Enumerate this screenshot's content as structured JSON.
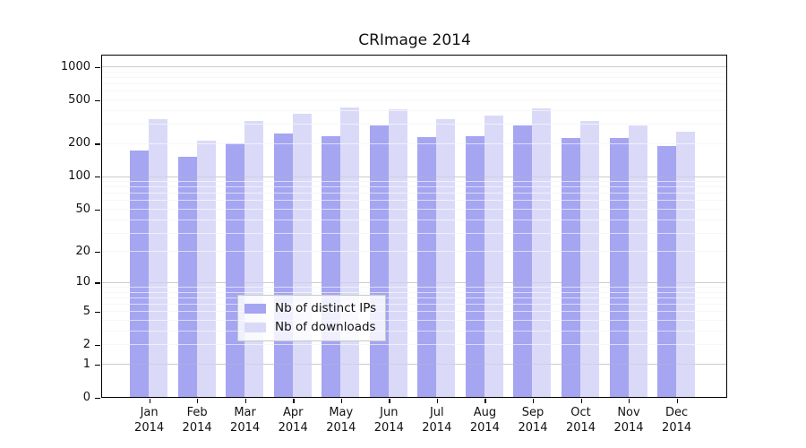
{
  "title": "CRImage 2014",
  "chart_data": {
    "type": "bar",
    "title": "CRImage 2014",
    "scale": "log1p",
    "categories": [
      "Jan",
      "Feb",
      "Mar",
      "Apr",
      "May",
      "Jun",
      "Jul",
      "Aug",
      "Sep",
      "Oct",
      "Nov",
      "Dec"
    ],
    "year_label": "2014",
    "series": [
      {
        "name": "Nb of distinct IPs",
        "color": "#a5a5f2",
        "values": [
          170,
          150,
          200,
          245,
          233,
          290,
          226,
          231,
          290,
          224,
          224,
          190
        ]
      },
      {
        "name": "Nb of downloads",
        "color": "#dadaf8",
        "values": [
          330,
          210,
          320,
          372,
          425,
          404,
          330,
          356,
          418,
          321,
          292,
          255
        ]
      }
    ],
    "y_ticks": [
      0,
      1,
      2,
      5,
      10,
      20,
      50,
      100,
      200,
      500,
      1000
    ],
    "ylim": [
      0,
      1100
    ],
    "xlabel": "",
    "ylabel": "",
    "grid": "log minor gridlines, drawn over bars",
    "legend_position": "bottom-center"
  },
  "colors": {
    "distinct_ips": "#a5a5f2",
    "downloads": "#dadaf8",
    "axis": "#000000",
    "minor_grid": "#ebebeb",
    "decade_grid": "#d4d4d4",
    "background": "#ffffff"
  }
}
